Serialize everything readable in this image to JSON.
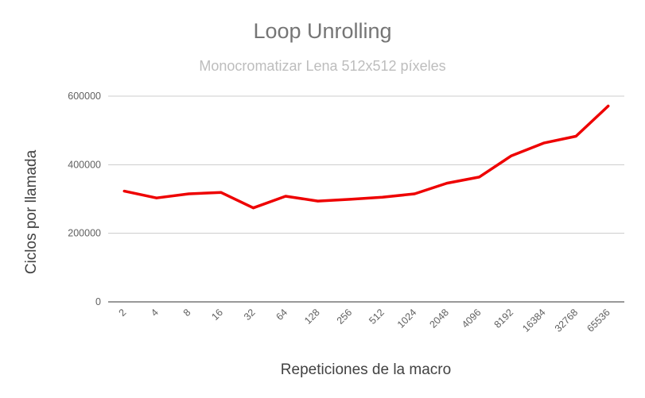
{
  "chart_data": {
    "type": "line",
    "title": "Loop Unrolling",
    "subtitle": "Monocromatizar Lena 512x512 píxeles",
    "xlabel": "Repeticiones de la macro",
    "ylabel": "Ciclos por llamada",
    "categories": [
      "2",
      "4",
      "8",
      "16",
      "32",
      "64",
      "128",
      "256",
      "512",
      "1024",
      "2048",
      "4096",
      "8192",
      "16384",
      "32768",
      "65536"
    ],
    "series": [
      {
        "values": [
          323000,
          303000,
          315000,
          319000,
          274000,
          308000,
          294000,
          299000,
          305000,
          315000,
          346000,
          364000,
          426000,
          463000,
          483000,
          571000
        ],
        "color": "#ee0000"
      }
    ],
    "yticks": [
      "0",
      "200000",
      "400000",
      "600000"
    ],
    "ylim": [
      0,
      600000
    ],
    "grid": true,
    "legend": "none"
  }
}
